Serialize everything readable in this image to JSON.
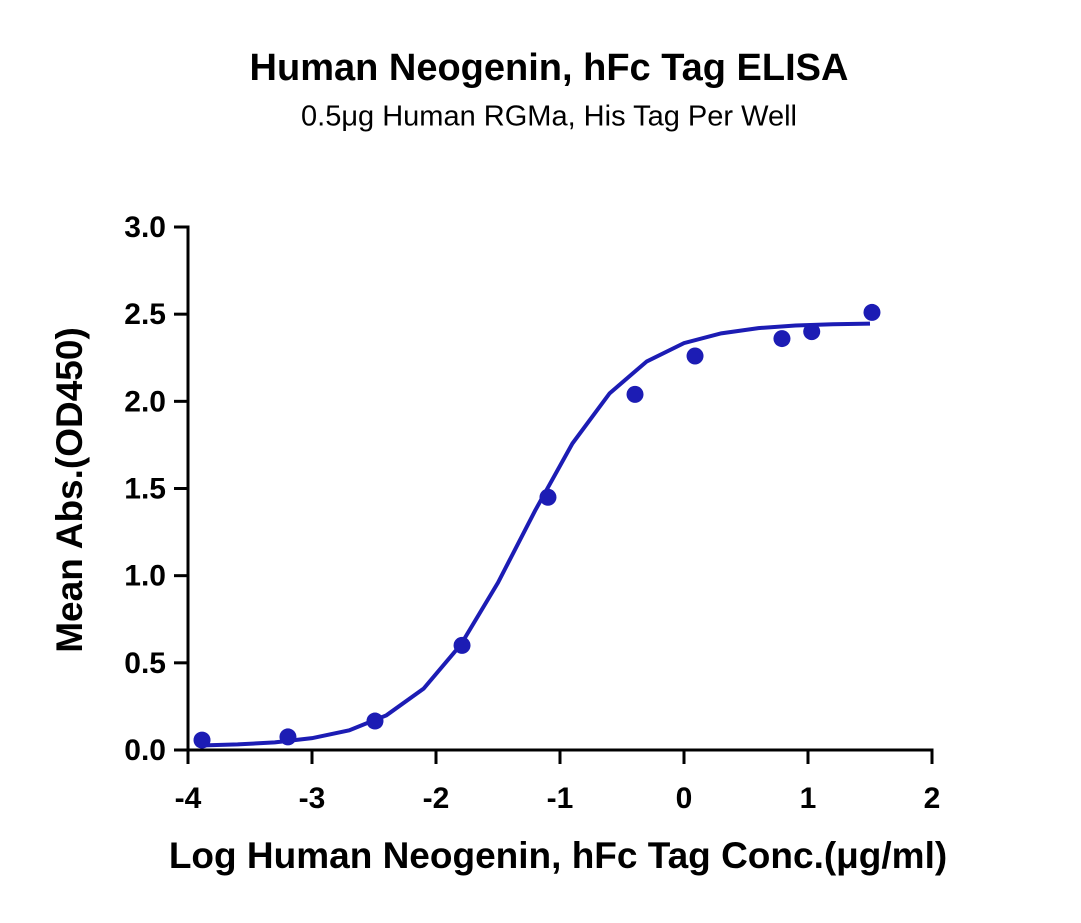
{
  "chart_data": {
    "type": "scatter",
    "title": "Human Neogenin, hFc Tag ELISA",
    "subtitle": "0.5μg Human RGMa, His Tag Per Well",
    "x_label": "Log Human Neogenin, hFc Tag Conc.(μg/ml)",
    "y_label": "Mean Abs.(OD450)",
    "xlim": [
      -4,
      2
    ],
    "xticks": [
      -4,
      -3,
      -2,
      -1,
      0,
      1,
      2
    ],
    "ylim": [
      0,
      3
    ],
    "yticks": [
      {
        "value": 0,
        "label": "0.0"
      },
      {
        "value": 0.5,
        "label": "0.5"
      },
      {
        "value": 1,
        "label": "1.0"
      },
      {
        "value": 1.5,
        "label": "1.5"
      },
      {
        "value": 2,
        "label": "2.0"
      },
      {
        "value": 2.5,
        "label": "2.5"
      },
      {
        "value": 3,
        "label": "3.0"
      }
    ],
    "series": [
      {
        "type": "scatter",
        "color": "#1c1cb4",
        "x": [
          -3.887,
          -3.194,
          -2.492,
          -1.79,
          -1.097,
          -0.395,
          0.089,
          0.79,
          1.03,
          1.516
        ],
        "values": [
          0.057,
          0.075,
          0.166,
          0.6,
          1.45,
          2.04,
          2.26,
          2.36,
          2.4,
          2.51
        ]
      },
      {
        "type": "line",
        "color": "#1c1cb4",
        "x": [
          -3.9,
          -3.6,
          -3.3,
          -3.0,
          -2.7,
          -2.4,
          -2.1,
          -1.8,
          -1.5,
          -1.2,
          -0.9,
          -0.6,
          -0.3,
          0,
          0.3,
          0.6,
          0.9,
          1.2,
          1.5
        ],
        "values": [
          0.026,
          0.032,
          0.044,
          0.068,
          0.113,
          0.199,
          0.352,
          0.604,
          0.96,
          1.374,
          1.758,
          2.046,
          2.229,
          2.334,
          2.39,
          2.42,
          2.435,
          2.442,
          2.446
        ]
      }
    ]
  }
}
